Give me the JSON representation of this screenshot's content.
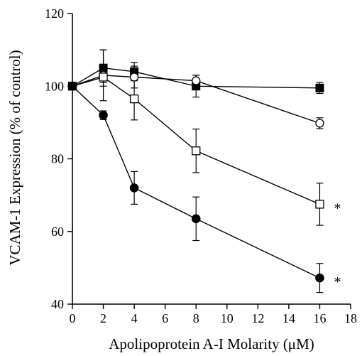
{
  "chart_data": {
    "type": "line",
    "title": "",
    "xlabel": "Apolipoprotein A-I Molarity (μM)",
    "ylabel": "VCAM-1 Expression (% of control)",
    "xlim": [
      0,
      18
    ],
    "ylim": [
      40,
      120
    ],
    "xticks": [
      "0",
      "2",
      "4",
      "6",
      "8",
      "10",
      "12",
      "14",
      "16",
      "18"
    ],
    "yticks": [
      "40",
      "60",
      "80",
      "100",
      "120"
    ],
    "grid": false,
    "legend": "none",
    "series": [
      {
        "marker": "filled-square",
        "color": "#000000",
        "x": [
          0,
          2,
          4,
          8,
          16
        ],
        "y": [
          100,
          105,
          104,
          100,
          99.5
        ],
        "err": [
          0,
          5,
          2.5,
          3,
          1.5
        ]
      },
      {
        "marker": "open-circle",
        "color": "#000000",
        "x": [
          0,
          2,
          4,
          8,
          16
        ],
        "y": [
          100,
          103,
          102.5,
          101.5,
          89.8
        ],
        "err": [
          0,
          7,
          3,
          1.5,
          1.5
        ]
      },
      {
        "marker": "open-square",
        "color": "#000000",
        "x": [
          0,
          2,
          4,
          8,
          16
        ],
        "y": [
          100,
          102.5,
          96.5,
          82.2,
          67.5
        ],
        "err": [
          0,
          1.5,
          5.8,
          6,
          5.8
        ]
      },
      {
        "marker": "filled-circle",
        "color": "#000000",
        "x": [
          0,
          2,
          4,
          8,
          16
        ],
        "y": [
          100,
          92,
          72,
          63.5,
          47.2
        ],
        "err": [
          0,
          1.2,
          4.5,
          6,
          4
        ]
      }
    ],
    "annotations": [
      {
        "text": "*",
        "x": 16,
        "y": 67.5
      },
      {
        "text": "*",
        "x": 16,
        "y": 47.2
      }
    ]
  }
}
